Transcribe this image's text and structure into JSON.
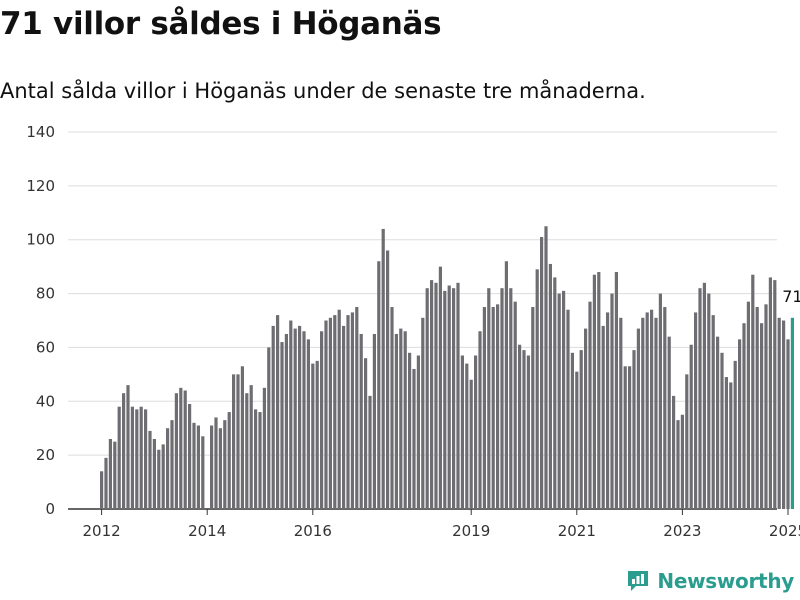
{
  "title": "71 villor såldes i Höganäs",
  "subtitle": "Antal sålda villor i Höganäs under de senaste tre månaderna.",
  "logo_text": "Newsworthy",
  "colors": {
    "bar": "#6e6d72",
    "highlight": "#2a9d8f",
    "grid": "#dddddd",
    "axis": "#333333"
  },
  "chart_data": {
    "type": "bar",
    "x_start": "2012-01",
    "frequency": "monthly",
    "ylim": [
      0,
      140
    ],
    "yticks": [
      0,
      20,
      40,
      60,
      80,
      100,
      120,
      140
    ],
    "xticks": [
      "2012",
      "2014",
      "2016",
      "2019",
      "2021",
      "2023",
      "2025"
    ],
    "grid": true,
    "highlight_last": true,
    "last_value_label": "71",
    "values": [
      14,
      19,
      26,
      25,
      38,
      43,
      46,
      38,
      37,
      38,
      37,
      29,
      26,
      22,
      24,
      30,
      33,
      43,
      45,
      44,
      39,
      32,
      31,
      27,
      null,
      31,
      34,
      30,
      33,
      36,
      50,
      50,
      53,
      43,
      46,
      37,
      36,
      45,
      60,
      68,
      72,
      62,
      65,
      70,
      67,
      68,
      66,
      63,
      54,
      55,
      66,
      70,
      71,
      72,
      74,
      68,
      72,
      73,
      75,
      65,
      56,
      42,
      65,
      92,
      104,
      96,
      75,
      65,
      67,
      66,
      58,
      52,
      57,
      71,
      82,
      85,
      84,
      90,
      81,
      83,
      82,
      84,
      57,
      54,
      48,
      57,
      66,
      75,
      82,
      75,
      76,
      82,
      92,
      82,
      77,
      61,
      59,
      57,
      75,
      89,
      101,
      105,
      91,
      86,
      80,
      81,
      74,
      58,
      51,
      59,
      67,
      77,
      87,
      88,
      68,
      73,
      80,
      88,
      71,
      53,
      53,
      59,
      67,
      71,
      73,
      74,
      71,
      80,
      75,
      64,
      42,
      33,
      35,
      50,
      61,
      73,
      82,
      84,
      80,
      72,
      64,
      58,
      49,
      47,
      55,
      63,
      69,
      77,
      87,
      75,
      69,
      76,
      86,
      85,
      71,
      70,
      63,
      71
    ]
  }
}
